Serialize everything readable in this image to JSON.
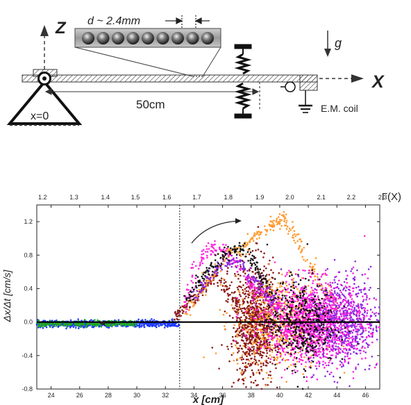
{
  "schematic": {
    "z_label": "Z",
    "x_label": "X",
    "g_label": "g",
    "d_label": "d ~ 2.4mm",
    "origin_label": "x=0",
    "length_label": "50cm",
    "coil_label": "E.M. coil"
  },
  "chart_data": {
    "type": "scatter",
    "xlabel": "x [cm]",
    "ylabel": "Δx/Δt [cm/s]",
    "top_axis_label": "Γ(X)",
    "xlim": [
      23,
      47
    ],
    "ylim": [
      -0.8,
      1.4
    ],
    "x_ticks": [
      "24",
      "26",
      "28",
      "30",
      "32",
      "34",
      "36",
      "38",
      "40",
      "42",
      "44",
      "46"
    ],
    "y_ticks": [
      "-0.8",
      "-0.4",
      "0.0",
      "0.4",
      "0.8",
      "1.2"
    ],
    "top_ticks": [
      "1.2",
      "1.3",
      "1.4",
      "1.5",
      "1.6",
      "1.7",
      "1.8",
      "1.9",
      "2.0",
      "2.1",
      "2.2",
      "2.3"
    ],
    "top_tick_x_positions_cm": [
      23.4,
      25.6,
      27.8,
      29.9,
      32.1,
      34.2,
      36.4,
      38.6,
      40.7,
      42.9,
      45.0,
      47.2
    ],
    "threshold_x": 33.0,
    "colors": [
      "#8b1a1a",
      "#ff9a30",
      "#ff22dd",
      "#8a2be2",
      "#111111",
      "#1e3cff",
      "#22aa22"
    ],
    "series": [
      {
        "color": "#8b1a1a",
        "trajectory": [
          [
            32.6,
            0.02
          ],
          [
            33.2,
            0.18
          ],
          [
            34.0,
            0.28
          ],
          [
            34.8,
            0.45
          ],
          [
            35.6,
            0.55
          ],
          [
            36.4,
            0.35
          ],
          [
            37.2,
            0.2
          ],
          [
            38.0,
            0.05
          ]
        ],
        "cloud": {
          "cx": 38.3,
          "cy": 0.0,
          "sx": 0.75,
          "sy": 0.36,
          "n": 900
        }
      },
      {
        "color": "#ff9a30",
        "trajectory": [
          [
            33.5,
            0.1
          ],
          [
            34.5,
            0.35
          ],
          [
            35.5,
            0.6
          ],
          [
            36.5,
            0.85
          ],
          [
            37.5,
            0.9
          ],
          [
            38.5,
            1.05
          ],
          [
            39.5,
            1.15
          ],
          [
            40.2,
            1.25
          ],
          [
            41.0,
            1.05
          ],
          [
            42.0,
            0.7
          ],
          [
            43.0,
            0.4
          ],
          [
            44.0,
            0.2
          ]
        ],
        "cloud": {
          "cx": 40.0,
          "cy": 0.0,
          "sx": 1.6,
          "sy": 0.28,
          "n": 600
        }
      },
      {
        "color": "#ff22dd",
        "trajectory": [
          [
            33.2,
            0.12
          ],
          [
            34.0,
            0.6
          ],
          [
            35.0,
            0.9
          ],
          [
            36.0,
            0.85
          ],
          [
            37.0,
            0.7
          ],
          [
            38.0,
            0.45
          ],
          [
            39.0,
            0.3
          ],
          [
            40.0,
            0.15
          ]
        ],
        "cloud": {
          "cx": 42.5,
          "cy": 0.0,
          "sx": 1.8,
          "sy": 0.24,
          "n": 1500
        }
      },
      {
        "color": "#8a2be2",
        "trajectory": [
          [
            34.0,
            0.3
          ],
          [
            35.0,
            0.55
          ],
          [
            36.0,
            0.7
          ],
          [
            37.0,
            0.72
          ],
          [
            38.0,
            0.55
          ],
          [
            39.0,
            0.35
          ],
          [
            40.0,
            0.2
          ]
        ],
        "cloud": {
          "cx": 44.5,
          "cy": 0.0,
          "sx": 1.3,
          "sy": 0.3,
          "n": 500
        }
      },
      {
        "color": "#111111",
        "trajectory": [
          [
            33.5,
            0.25
          ],
          [
            34.5,
            0.55
          ],
          [
            35.5,
            0.7
          ],
          [
            36.5,
            0.85
          ],
          [
            37.5,
            0.9
          ],
          [
            38.5,
            0.6
          ],
          [
            39.5,
            0.3
          ]
        ],
        "cloud": {
          "cx": 41.5,
          "cy": 0.0,
          "sx": 1.2,
          "sy": 0.26,
          "n": 400
        }
      },
      {
        "color": "#1e3cff",
        "band": {
          "x0": 23.0,
          "x1": 33.0,
          "cy": -0.02,
          "sy": 0.02,
          "n": 700
        }
      },
      {
        "color": "#22aa22",
        "band": {
          "x0": 23.0,
          "x1": 30.0,
          "cy": -0.02,
          "sy": 0.015,
          "n": 300
        }
      }
    ]
  }
}
